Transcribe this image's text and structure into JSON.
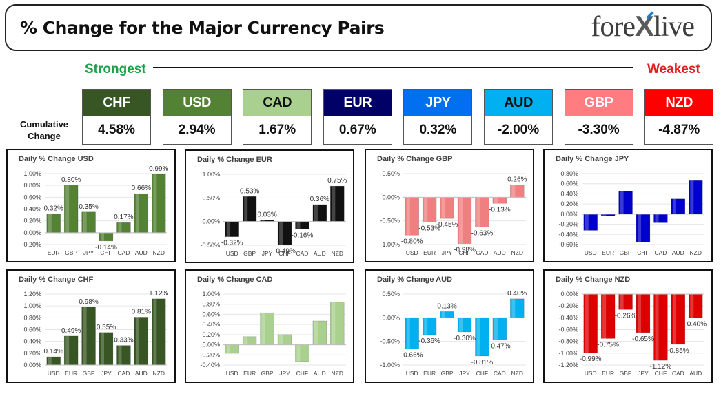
{
  "header": {
    "title": "% Change for the Major Currency Pairs",
    "logo_left": "fore",
    "logo_x": "X",
    "logo_right": "live"
  },
  "scale": {
    "strong_label": "Strongest",
    "weak_label": "Weakest",
    "cumulative_label_1": "Cumulative",
    "cumulative_label_2": "Change"
  },
  "currencies": [
    {
      "code": "CHF",
      "value": "4.58%",
      "color": "#375623",
      "text": "#ffffff"
    },
    {
      "code": "USD",
      "value": "2.94%",
      "color": "#548235",
      "text": "#ffffff"
    },
    {
      "code": "CAD",
      "value": "1.67%",
      "color": "#a9d08e",
      "text": "#111111"
    },
    {
      "code": "EUR",
      "value": "0.67%",
      "color": "#000066",
      "text": "#ffffff"
    },
    {
      "code": "JPY",
      "value": "0.32%",
      "color": "#0070f0",
      "text": "#ffffff"
    },
    {
      "code": "AUD",
      "value": "-2.00%",
      "color": "#00b0f0",
      "text": "#111111"
    },
    {
      "code": "GBP",
      "value": "-3.30%",
      "color": "#ff7c80",
      "text": "#ffffff"
    },
    {
      "code": "NZD",
      "value": "-4.87%",
      "color": "#ff0000",
      "text": "#ffffff"
    }
  ],
  "chart_data": [
    {
      "type": "bar",
      "title": "Daily % Change USD",
      "color": "#548235",
      "categories": [
        "EUR",
        "GBP",
        "JPY",
        "CHF",
        "CAD",
        "AUD",
        "NZD"
      ],
      "values": [
        0.32,
        0.8,
        0.35,
        -0.14,
        0.17,
        0.66,
        0.99
      ],
      "data_labels": [
        "0.32%",
        "0.80%",
        "0.35%",
        "-0.14%",
        "0.17%",
        "0.66%",
        "0.99%"
      ],
      "yticks": [
        "1.00%",
        "0.80%",
        "0.60%",
        "0.40%",
        "0.20%",
        "0.00%",
        "-0.20%"
      ],
      "ylim": [
        -0.2,
        1.0
      ]
    },
    {
      "type": "bar",
      "title": "Daily % Change EUR",
      "color": "#111111",
      "categories": [
        "USD",
        "GBP",
        "JPY",
        "CHF",
        "CAD",
        "AUD",
        "NZD"
      ],
      "values": [
        -0.32,
        0.53,
        0.03,
        -0.49,
        -0.16,
        0.36,
        0.75
      ],
      "data_labels": [
        "-0.32%",
        "0.53%",
        "0.03%",
        "-0.49%",
        "-0.16%",
        "0.36%",
        "0.75%"
      ],
      "yticks": [
        "1.00%",
        "0.50%",
        "0.00%",
        "-0.50%"
      ],
      "ylim": [
        -0.5,
        1.0
      ]
    },
    {
      "type": "bar",
      "title": "Daily % Change GBP",
      "color": "#f08080",
      "categories": [
        "USD",
        "EUR",
        "JPY",
        "CHF",
        "CAD",
        "AUD",
        "NZD"
      ],
      "values": [
        -0.8,
        -0.53,
        -0.45,
        -0.98,
        -0.63,
        -0.13,
        0.26
      ],
      "data_labels": [
        "-0.80%",
        "-0.53%",
        "-0.45%",
        "-0.98%",
        "-0.63%",
        "-0.13%",
        "0.26%"
      ],
      "yticks": [
        "0.50%",
        "0.00%",
        "-0.50%",
        "-1.00%"
      ],
      "ylim": [
        -1.0,
        0.5
      ]
    },
    {
      "type": "bar",
      "title": "Daily % Change JPY",
      "color": "#0000cc",
      "categories": [
        "USD",
        "EUR",
        "GBP",
        "CHF",
        "CAD",
        "AUD",
        "NZD"
      ],
      "values": [
        -0.32,
        -0.03,
        0.45,
        -0.55,
        -0.17,
        0.3,
        0.66
      ],
      "data_labels": [],
      "yticks": [
        "0.80%",
        "0.60%",
        "0.40%",
        "0.20%",
        "0.00%",
        "-0.20%",
        "-0.40%",
        "-0.60%"
      ],
      "ylim": [
        -0.6,
        0.8
      ]
    },
    {
      "type": "bar",
      "title": "Daily % Change CHF",
      "color": "#375623",
      "categories": [
        "USD",
        "EUR",
        "GBP",
        "JPY",
        "CAD",
        "AUD",
        "NZD"
      ],
      "values": [
        0.14,
        0.49,
        0.98,
        0.55,
        0.33,
        0.81,
        1.12
      ],
      "data_labels": [
        "0.14%",
        "0.49%",
        "0.98%",
        "0.55%",
        "0.33%",
        "0.81%",
        "1.12%"
      ],
      "yticks": [
        "1.20%",
        "1.00%",
        "0.80%",
        "0.60%",
        "0.40%",
        "0.20%",
        "0.00%"
      ],
      "ylim": [
        0,
        1.2
      ]
    },
    {
      "type": "bar",
      "title": "Daily % Change CAD",
      "color": "#a9d08e",
      "categories": [
        "USD",
        "EUR",
        "GBP",
        "JPY",
        "CHF",
        "AUD",
        "NZD"
      ],
      "values": [
        -0.17,
        0.16,
        0.63,
        0.2,
        -0.33,
        0.47,
        0.84
      ],
      "data_labels": [],
      "yticks": [
        "1.00%",
        "0.80%",
        "0.60%",
        "0.40%",
        "0.20%",
        "0.00%",
        "-0.20%",
        "-0.40%"
      ],
      "ylim": [
        -0.4,
        1.0
      ]
    },
    {
      "type": "bar",
      "title": "Daily % Change AUD",
      "color": "#00b0f0",
      "categories": [
        "USD",
        "EUR",
        "GBP",
        "JPY",
        "CHF",
        "CAD",
        "NZD"
      ],
      "values": [
        -0.66,
        -0.36,
        0.13,
        -0.3,
        -0.81,
        -0.47,
        0.4
      ],
      "data_labels": [
        "-0.66%",
        "-0.36%",
        "0.13%",
        "-0.30%",
        "-0.81%",
        "-0.47%",
        "0.40%"
      ],
      "yticks": [
        "0.50%",
        "0.00%",
        "-0.50%",
        "-1.00%"
      ],
      "ylim": [
        -1.0,
        0.5
      ]
    },
    {
      "type": "bar",
      "title": "Daily % Change NZD",
      "color": "#dd0000",
      "categories": [
        "USD",
        "EUR",
        "GBP",
        "JPY",
        "CHF",
        "CAD",
        "AUD"
      ],
      "values": [
        -0.99,
        -0.75,
        -0.26,
        -0.65,
        -1.12,
        -0.85,
        -0.4
      ],
      "data_labels": [
        "-0.99%",
        "-0.75%",
        "-0.26%",
        "-0.65%",
        "-1.12%",
        "-0.85%",
        "-0.40%"
      ],
      "yticks": [
        "0.00%",
        "-0.20%",
        "-0.40%",
        "-0.60%",
        "-0.80%",
        "-1.00%",
        "-1.20%"
      ],
      "ylim": [
        -1.2,
        0.0
      ]
    }
  ]
}
